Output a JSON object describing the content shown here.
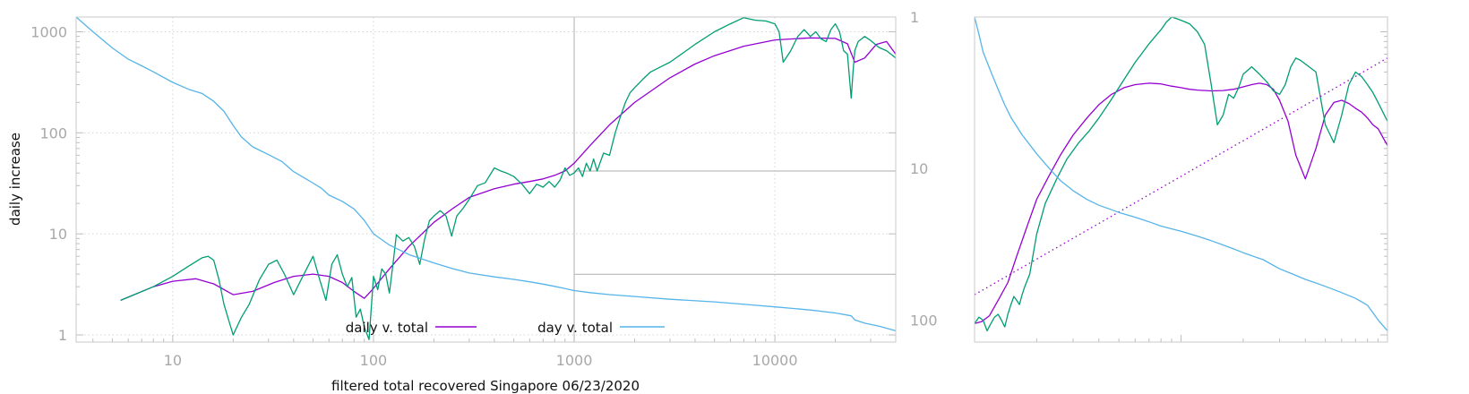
{
  "chart_data": [
    {
      "type": "line",
      "xlabel": "filtered total recovered Singapore 06/23/2020",
      "ylabel": "daily increase",
      "xscale": "log",
      "yscale": "log",
      "xlim": [
        3.3,
        40000
      ],
      "ylim": [
        0.85,
        1400
      ],
      "y2scale": "log",
      "y2lim": [
        1,
        140
      ],
      "y2direction": "inverted",
      "grid": true,
      "legend_position": "bottom",
      "x_tick_labels": [
        "10",
        "100",
        "1000",
        "10000"
      ],
      "y_tick_labels": [
        "1",
        "10",
        "100",
        "1000"
      ],
      "y2_tick_labels": [
        "1",
        "10",
        "100"
      ],
      "colors": {
        "daily_smooth": "#9400d3",
        "daily_raw": "#009e73",
        "day": "#56b4e9",
        "frame": "#c8c8c8"
      },
      "series": [
        {
          "name": "daily v. total",
          "axis": "y",
          "x": [
            5.5,
            8,
            10,
            13,
            16,
            20,
            25,
            32,
            40,
            50,
            60,
            70,
            80,
            90,
            100,
            120,
            150,
            200,
            250,
            300,
            400,
            500,
            600,
            700,
            800,
            900,
            1000,
            1200,
            1500,
            2000,
            3000,
            4000,
            5000,
            7000,
            10000,
            15000,
            20000,
            23000,
            25000,
            28000,
            32000,
            36000,
            40000
          ],
          "values": [
            2.2,
            3.0,
            3.4,
            3.6,
            3.2,
            2.5,
            2.7,
            3.3,
            3.8,
            4.0,
            3.8,
            3.3,
            2.7,
            2.3,
            2.9,
            4.5,
            7.5,
            13,
            18,
            23,
            28,
            31,
            33,
            35,
            38,
            42,
            50,
            75,
            120,
            200,
            350,
            480,
            580,
            720,
            830,
            870,
            860,
            760,
            500,
            550,
            750,
            800,
            600
          ]
        },
        {
          "name": "",
          "axis": "y",
          "x": [
            5.5,
            8,
            10,
            12,
            14,
            15,
            16,
            17,
            18,
            19,
            20,
            22,
            24,
            27,
            30,
            33,
            36,
            40,
            45,
            50,
            54,
            58,
            62,
            66,
            70,
            74,
            78,
            82,
            86,
            90,
            95,
            100,
            105,
            110,
            115,
            120,
            125,
            130,
            140,
            150,
            160,
            170,
            180,
            190,
            200,
            215,
            230,
            245,
            260,
            280,
            300,
            330,
            360,
            400,
            430,
            460,
            500,
            550,
            600,
            650,
            700,
            750,
            800,
            850,
            900,
            950,
            1000,
            1050,
            1100,
            1150,
            1200,
            1250,
            1300,
            1400,
            1500,
            1600,
            1700,
            1800,
            1900,
            2000,
            2200,
            2400,
            2700,
            3000,
            3500,
            4000,
            5000,
            6000,
            7000,
            8000,
            9000,
            10000,
            10500,
            11000,
            12000,
            13000,
            14000,
            15000,
            16000,
            17000,
            18000,
            19000,
            20000,
            21000,
            22000,
            23000,
            24000,
            24500,
            25000,
            26000,
            28000,
            30000,
            33000,
            36000,
            40000
          ],
          "values": [
            2.2,
            3.0,
            3.8,
            4.8,
            5.8,
            6.0,
            5.5,
            3.5,
            2.0,
            1.4,
            1.0,
            1.5,
            2.0,
            3.5,
            5.0,
            5.5,
            4.0,
            2.5,
            4.0,
            6.0,
            3.5,
            2.2,
            5.0,
            6.2,
            4.0,
            3.0,
            3.7,
            1.5,
            1.8,
            1.2,
            0.9,
            3.8,
            2.8,
            4.5,
            4.0,
            2.6,
            5.0,
            9.8,
            8.5,
            9.2,
            7.5,
            5.0,
            9.0,
            13.5,
            15,
            17,
            15,
            9.5,
            15,
            18,
            22,
            30,
            32,
            45,
            42,
            40,
            37,
            31,
            25,
            31,
            29,
            33,
            29,
            34,
            45,
            38,
            40,
            45,
            37,
            50,
            42,
            55,
            42,
            63,
            60,
            100,
            145,
            200,
            250,
            280,
            340,
            400,
            450,
            500,
            620,
            750,
            1000,
            1200,
            1380,
            1300,
            1280,
            1200,
            1000,
            500,
            650,
            900,
            1050,
            900,
            1000,
            850,
            800,
            1050,
            1200,
            1000,
            650,
            600,
            220,
            400,
            650,
            800,
            900,
            820,
            700,
            650,
            550
          ]
        },
        {
          "name": "day v. total",
          "axis": "y2",
          "x": [
            3.3,
            4,
            5,
            6,
            7,
            8,
            10,
            12,
            14,
            16,
            18,
            20,
            22,
            25,
            30,
            35,
            40,
            45,
            50,
            55,
            60,
            70,
            80,
            90,
            100,
            120,
            150,
            200,
            250,
            300,
            400,
            500,
            600,
            700,
            800,
            900,
            1000,
            1200,
            1500,
            2000,
            3000,
            5000,
            8000,
            10000,
            15000,
            20000,
            24000,
            25000,
            28000,
            33000,
            40000
          ],
          "values": [
            1.0,
            1.25,
            1.6,
            1.9,
            2.1,
            2.3,
            2.7,
            3.0,
            3.2,
            3.6,
            4.2,
            5.2,
            6.2,
            7.2,
            8.1,
            9.0,
            10.5,
            11.5,
            12.5,
            13.5,
            15,
            16.5,
            18.5,
            22,
            27,
            32,
            37,
            42,
            46,
            49,
            52,
            54,
            56,
            58,
            60,
            62,
            64,
            66,
            68,
            70,
            73,
            76,
            80,
            82,
            86,
            90,
            94,
            100,
            105,
            110,
            118
          ]
        }
      ],
      "reference_lines": [
        {
          "axis": "x",
          "value": 1000
        },
        {
          "axis": "y2",
          "value": 10.4,
          "x_from": 1000
        },
        {
          "axis": "y2",
          "value": 50,
          "x_from": 1000
        }
      ]
    },
    {
      "type": "line",
      "xscale": "log",
      "yscale": "log",
      "xlim": [
        1,
        100
      ],
      "ylim": [
        0.85,
        1400
      ],
      "y2lim": [
        1,
        140
      ],
      "y2direction": "inverted",
      "grid": false,
      "series": [
        {
          "name": "",
          "axis": "y",
          "x": [
            1,
            1.08,
            1.18,
            1.3,
            1.45,
            1.6,
            1.8,
            2,
            2.3,
            2.6,
            3,
            3.5,
            4,
            4.6,
            5.3,
            6,
            7,
            8,
            9,
            10,
            11,
            12,
            14,
            16,
            18,
            20,
            22,
            24,
            26,
            28,
            30,
            33,
            36,
            40,
            45,
            50,
            55,
            60,
            65,
            70,
            75,
            80,
            85,
            90,
            95,
            100
          ],
          "values": [
            1.3,
            1.35,
            1.55,
            2.2,
            3.3,
            6,
            12,
            22,
            38,
            60,
            95,
            140,
            190,
            240,
            280,
            300,
            310,
            305,
            290,
            280,
            270,
            265,
            260,
            262,
            270,
            285,
            300,
            310,
            300,
            270,
            210,
            130,
            60,
            35,
            70,
            150,
            200,
            210,
            195,
            175,
            160,
            140,
            120,
            110,
            90,
            75
          ]
        },
        {
          "name": "",
          "axis": "y",
          "x": [
            1,
            1.05,
            1.1,
            1.15,
            1.2,
            1.25,
            1.3,
            1.35,
            1.4,
            1.45,
            1.5,
            1.55,
            1.6,
            1.65,
            1.7,
            1.75,
            1.85,
            2,
            2.2,
            2.5,
            2.8,
            3.2,
            3.6,
            4,
            4.5,
            5,
            5.5,
            6,
            6.5,
            7,
            7.5,
            8,
            8.5,
            9,
            9.5,
            10,
            10.5,
            11,
            12,
            13,
            14,
            15,
            16,
            17,
            18,
            19,
            20,
            22,
            24,
            26,
            28,
            30,
            32,
            34,
            36,
            38,
            40,
            45,
            50,
            55,
            60,
            65,
            70,
            75,
            80,
            85,
            90,
            95,
            100
          ],
          "values": [
            1.3,
            1.5,
            1.4,
            1.1,
            1.3,
            1.5,
            1.6,
            1.4,
            1.2,
            1.6,
            2.0,
            2.4,
            2.2,
            2.0,
            2.5,
            3.0,
            4.0,
            10,
            20,
            35,
            55,
            80,
            105,
            140,
            200,
            280,
            380,
            500,
            620,
            760,
            900,
            1050,
            1250,
            1400,
            1350,
            1300,
            1250,
            1200,
            1000,
            750,
            300,
            120,
            150,
            240,
            220,
            280,
            380,
            450,
            380,
            320,
            260,
            240,
            300,
            450,
            550,
            520,
            480,
            400,
            120,
            80,
            150,
            300,
            400,
            360,
            300,
            250,
            200,
            160,
            130
          ]
        },
        {
          "name": "",
          "axis": "y",
          "x": [
            1,
            100
          ],
          "values": [
            2.5,
            550
          ]
        },
        {
          "name": "",
          "axis": "y2",
          "x": [
            1,
            1.05,
            1.1,
            1.2,
            1.3,
            1.4,
            1.5,
            1.7,
            2,
            2.3,
            2.6,
            3,
            3.5,
            4,
            5,
            6,
            7,
            8,
            10,
            12,
            14,
            16,
            18,
            20,
            25,
            30,
            35,
            40,
            45,
            50,
            60,
            70,
            80,
            90,
            100
          ],
          "values": [
            1,
            1.3,
            1.7,
            2.3,
            3.0,
            3.8,
            4.6,
            6.0,
            8.0,
            10.0,
            12.0,
            14.0,
            16.0,
            17.5,
            19.5,
            21.0,
            22.5,
            24.0,
            26.0,
            28.0,
            30.0,
            32.0,
            34.0,
            36.0,
            40.0,
            46.0,
            50.0,
            54.0,
            57.0,
            60.0,
            66.0,
            72.0,
            80.0,
            100.0,
            118.0
          ]
        }
      ]
    }
  ]
}
